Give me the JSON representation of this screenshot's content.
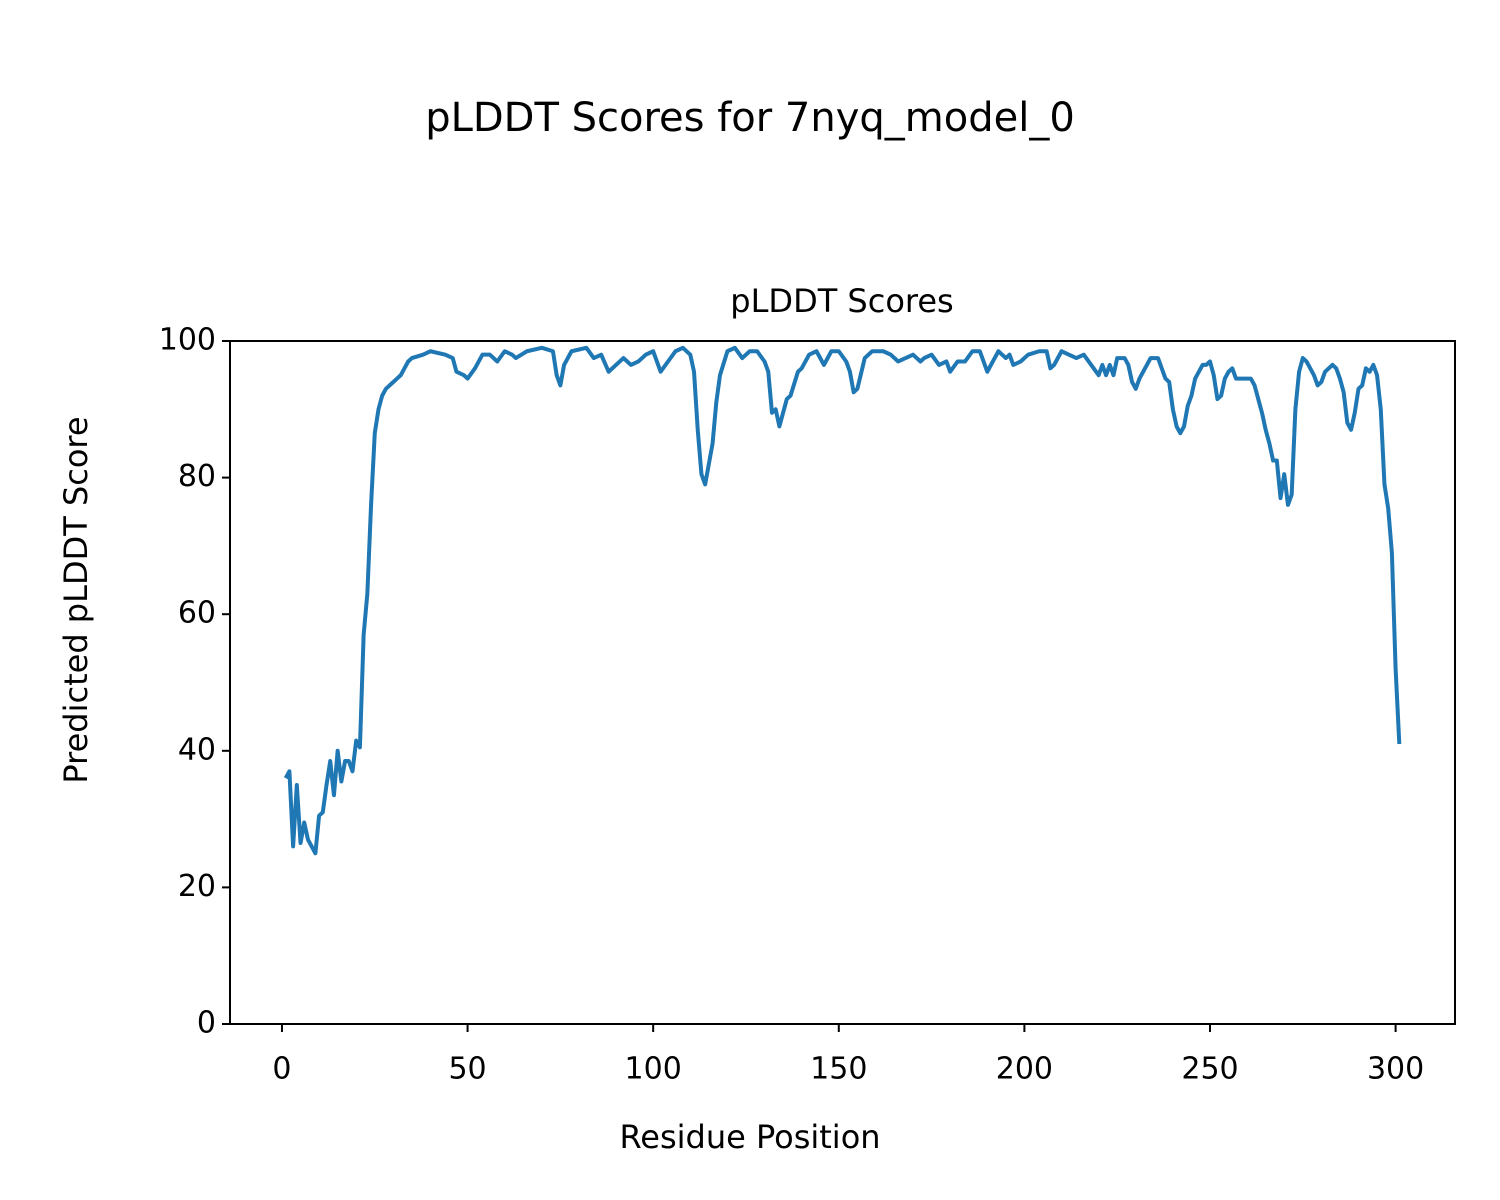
{
  "chart_data": {
    "type": "line",
    "title": "pLDDT Scores for 7nyq_model_0",
    "subtitle": "pLDDT Scores",
    "x_label": "Residue Position",
    "y_label": "Predicted pLDDT Score",
    "xlim": [
      -14,
      316
    ],
    "xticks": [
      0,
      50,
      100,
      150,
      200,
      250,
      300
    ],
    "ylim": [
      0,
      100
    ],
    "yticks": [
      0,
      20,
      40,
      60,
      80,
      100
    ],
    "grid": false,
    "series": [
      {
        "name": "pLDDT",
        "color": "#1f77b4",
        "x": [
          1,
          2,
          3,
          4,
          5,
          6,
          7,
          8,
          9,
          10,
          11,
          12,
          13,
          14,
          15,
          16,
          17,
          18,
          19,
          20,
          21,
          22,
          23,
          24,
          25,
          26,
          27,
          28,
          29,
          30,
          31,
          32,
          33,
          34,
          35,
          38,
          40,
          44,
          46,
          47,
          49,
          50,
          52,
          54,
          56,
          58,
          60,
          62,
          63,
          66,
          70,
          73,
          74,
          75,
          76,
          78,
          82,
          84,
          86,
          88,
          90,
          92,
          94,
          96,
          98,
          100,
          101,
          102,
          104,
          106,
          108,
          110,
          111,
          112,
          113,
          114,
          116,
          117,
          118,
          120,
          122,
          124,
          126,
          128,
          130,
          131,
          132,
          133,
          134,
          136,
          137,
          139,
          140,
          142,
          144,
          146,
          148,
          150,
          152,
          153,
          154,
          155,
          157,
          159,
          162,
          164,
          166,
          168,
          170,
          172,
          173,
          175,
          177,
          179,
          180,
          182,
          184,
          186,
          188,
          190,
          192,
          193,
          195,
          196,
          197,
          199,
          201,
          204,
          206,
          207,
          208,
          210,
          212,
          214,
          216,
          218,
          220,
          221,
          222,
          223,
          224,
          225,
          227,
          228,
          229,
          230,
          231,
          233,
          234,
          236,
          237,
          238,
          239,
          240,
          241,
          242,
          243,
          244,
          245,
          246,
          248,
          249,
          250,
          251,
          252,
          253,
          254,
          255,
          256,
          257,
          259,
          261,
          262,
          263,
          264,
          265,
          266,
          267,
          268,
          269,
          270,
          271,
          272,
          273,
          274,
          275,
          276,
          277,
          278,
          279,
          280,
          281,
          282,
          283,
          284,
          285,
          286,
          287,
          288,
          289,
          290,
          291,
          292,
          293,
          294,
          295,
          296,
          297,
          298,
          299,
          300,
          301
        ],
        "values": [
          36,
          37,
          26,
          35,
          26.5,
          29.5,
          27,
          26,
          25,
          30.5,
          31,
          35,
          38.5,
          33.5,
          40,
          35.5,
          38.5,
          38.5,
          37,
          41.5,
          40.5,
          57,
          63,
          76,
          86.5,
          90,
          92,
          93,
          93.5,
          94,
          94.5,
          95,
          96,
          97,
          97.5,
          98,
          98.5,
          98,
          97.5,
          95.5,
          95,
          94.5,
          96,
          98,
          98,
          97,
          98.5,
          98,
          97.5,
          98.5,
          99,
          98.5,
          95,
          93.5,
          96.5,
          98.5,
          99,
          97.5,
          98,
          95.5,
          96.5,
          97.5,
          96.5,
          97,
          98,
          98.5,
          97,
          95.5,
          97,
          98.5,
          99,
          98,
          95.5,
          87,
          80.5,
          79,
          85,
          91,
          95,
          98.5,
          99,
          97.5,
          98.5,
          98.5,
          97,
          95.5,
          89.5,
          90,
          87.5,
          91.5,
          92,
          95.5,
          96,
          98,
          98.5,
          96.5,
          98.5,
          98.5,
          97,
          95.5,
          92.5,
          93,
          97.5,
          98.5,
          98.5,
          98,
          97,
          97.5,
          98,
          97,
          97.5,
          98,
          96.5,
          97,
          95.5,
          97,
          97,
          98.5,
          98.5,
          95.5,
          97.5,
          98.5,
          97.5,
          98,
          96.5,
          97,
          98,
          98.5,
          98.5,
          96,
          96.5,
          98.5,
          98,
          97.5,
          98,
          96.5,
          95,
          96.5,
          95,
          96.5,
          95,
          97.5,
          97.5,
          96.5,
          94,
          93,
          94.5,
          96.5,
          97.5,
          97.5,
          96,
          94.5,
          94,
          90,
          87.5,
          86.5,
          87.5,
          90.5,
          92,
          94.5,
          96.5,
          96.5,
          97,
          95,
          91.5,
          92,
          94.5,
          95.5,
          96,
          94.5,
          94.5,
          94.5,
          93.5,
          91.5,
          89.5,
          87,
          85,
          82.5,
          82.5,
          77,
          80.5,
          76,
          77.5,
          90,
          95.5,
          97.5,
          97,
          96,
          95,
          93.5,
          94,
          95.5,
          96,
          96.5,
          96,
          94.5,
          92.5,
          88,
          87,
          89.5,
          93,
          93.5,
          96,
          95.5,
          96.5,
          95,
          90,
          79,
          75.5,
          69,
          52,
          41
        ]
      }
    ]
  }
}
